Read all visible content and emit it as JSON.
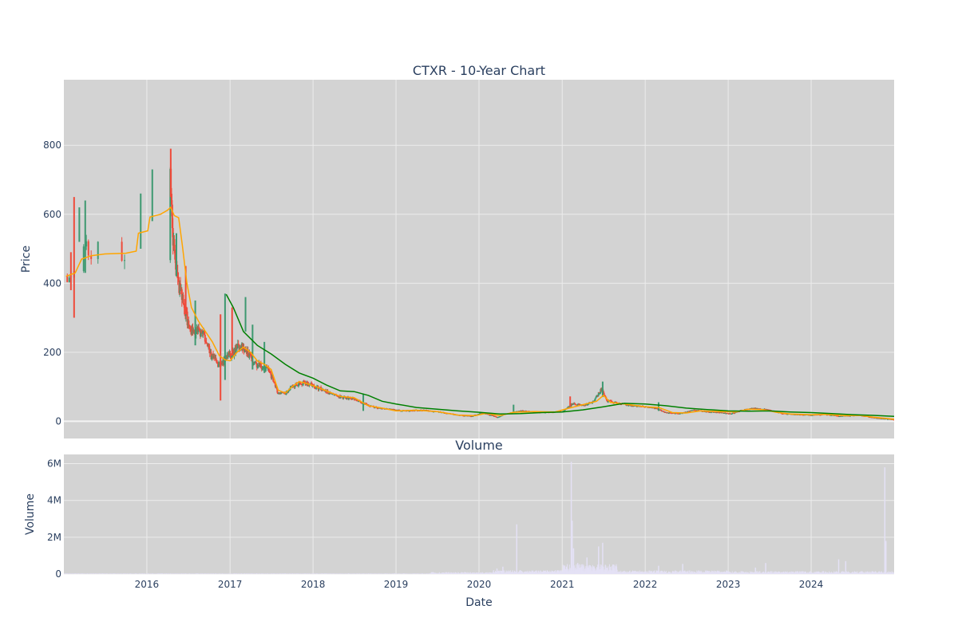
{
  "chart_data": [
    {
      "type": "candlestick",
      "title": "CTXR - 10-Year Chart",
      "xlabel": "",
      "ylabel": "Price",
      "xlim": [
        "2015-01-01",
        "2024-12-31"
      ],
      "ylim": [
        -50,
        990
      ],
      "yticks": [
        0,
        200,
        400,
        600,
        800
      ],
      "grid": true,
      "up_color": "#3d9970",
      "down_color": "#ef4a3a",
      "price_anchors": [
        [
          "2015-01-01",
          420
        ],
        [
          "2015-01-20",
          400
        ],
        [
          "2015-02-05",
          440
        ],
        [
          "2015-02-20",
          460
        ],
        [
          "2015-03-20",
          520
        ],
        [
          "2015-04-20",
          500
        ],
        [
          "2015-10-10",
          470
        ],
        [
          "2015-11-25",
          560
        ],
        [
          "2016-01-05",
          600
        ],
        [
          "2016-04-10",
          810
        ],
        [
          "2016-04-25",
          520
        ],
        [
          "2016-05-15",
          410
        ],
        [
          "2016-06-10",
          340
        ],
        [
          "2016-07-10",
          260
        ],
        [
          "2016-08-15",
          260
        ],
        [
          "2016-09-10",
          250
        ],
        [
          "2016-10-10",
          190
        ],
        [
          "2016-11-15",
          160
        ],
        [
          "2016-12-20",
          190
        ],
        [
          "2017-01-15",
          200
        ],
        [
          "2017-02-15",
          220
        ],
        [
          "2017-03-15",
          200
        ],
        [
          "2017-04-15",
          170
        ],
        [
          "2017-05-15",
          160
        ],
        [
          "2017-06-15",
          150
        ],
        [
          "2017-07-15",
          110
        ],
        [
          "2017-08-01",
          80
        ],
        [
          "2017-09-01",
          80
        ],
        [
          "2017-10-01",
          100
        ],
        [
          "2017-11-01",
          110
        ],
        [
          "2017-12-01",
          110
        ],
        [
          "2018-01-15",
          100
        ],
        [
          "2018-03-01",
          85
        ],
        [
          "2018-05-01",
          70
        ],
        [
          "2018-07-01",
          65
        ],
        [
          "2018-08-15",
          50
        ],
        [
          "2018-10-01",
          40
        ],
        [
          "2018-12-01",
          35
        ],
        [
          "2019-02-01",
          30
        ],
        [
          "2019-05-01",
          32
        ],
        [
          "2019-08-01",
          25
        ],
        [
          "2019-10-01",
          18
        ],
        [
          "2019-12-01",
          15
        ],
        [
          "2020-01-15",
          25
        ],
        [
          "2020-03-20",
          12
        ],
        [
          "2020-05-01",
          22
        ],
        [
          "2020-07-01",
          30
        ],
        [
          "2020-09-01",
          27
        ],
        [
          "2020-11-01",
          26
        ],
        [
          "2021-01-01",
          28
        ],
        [
          "2021-02-20",
          52
        ],
        [
          "2021-04-01",
          45
        ],
        [
          "2021-05-15",
          55
        ],
        [
          "2021-06-25",
          95
        ],
        [
          "2021-07-15",
          60
        ],
        [
          "2021-09-01",
          52
        ],
        [
          "2021-11-01",
          45
        ],
        [
          "2022-01-01",
          42
        ],
        [
          "2022-02-15",
          38
        ],
        [
          "2022-04-01",
          25
        ],
        [
          "2022-06-01",
          22
        ],
        [
          "2022-08-01",
          32
        ],
        [
          "2022-10-01",
          28
        ],
        [
          "2022-12-01",
          25
        ],
        [
          "2023-01-15",
          22
        ],
        [
          "2023-03-01",
          32
        ],
        [
          "2023-05-01",
          38
        ],
        [
          "2023-07-01",
          32
        ],
        [
          "2023-09-01",
          22
        ],
        [
          "2023-11-01",
          20
        ],
        [
          "2024-01-01",
          18
        ],
        [
          "2024-03-01",
          20
        ],
        [
          "2024-05-01",
          15
        ],
        [
          "2024-08-01",
          18
        ],
        [
          "2024-10-01",
          10
        ],
        [
          "2024-12-31",
          5
        ]
      ],
      "spikes": [
        [
          "2015-02-15",
          650,
          300
        ],
        [
          "2015-03-10",
          620,
          520
        ],
        [
          "2015-04-05",
          640,
          430
        ],
        [
          "2015-02-01",
          490,
          380
        ],
        [
          "2016-01-25",
          730,
          580
        ],
        [
          "2015-12-05",
          660,
          500
        ],
        [
          "2016-04-15",
          790,
          650
        ],
        [
          "2016-05-10",
          545,
          420
        ],
        [
          "2016-12-10",
          370,
          120
        ],
        [
          "2017-01-10",
          330,
          190
        ],
        [
          "2017-03-10",
          360,
          260
        ],
        [
          "2017-04-10",
          280,
          150
        ],
        [
          "2016-06-20",
          450,
          310
        ],
        [
          "2016-08-01",
          350,
          220
        ],
        [
          "2017-06-01",
          230,
          140
        ],
        [
          "2016-11-20",
          310,
          60
        ],
        [
          "2018-08-10",
          80,
          30
        ],
        [
          "2020-06-01",
          48,
          28
        ],
        [
          "2021-02-05",
          72,
          42
        ],
        [
          "2021-06-28",
          115,
          70
        ],
        [
          "2022-03-01",
          55,
          30
        ]
      ],
      "series": [
        {
          "name": "",
          "color": "#ffa500",
          "points": [
            [
              "2015-01-10",
              420
            ],
            [
              "2015-02-20",
              430
            ],
            [
              "2015-03-20",
              470
            ],
            [
              "2015-05-01",
              480
            ],
            [
              "2015-07-01",
              485
            ],
            [
              "2015-10-01",
              487
            ],
            [
              "2015-11-15",
              493
            ],
            [
              "2015-11-25",
              545
            ],
            [
              "2016-01-05",
              552
            ],
            [
              "2016-01-15",
              592
            ],
            [
              "2016-03-01",
              600
            ],
            [
              "2016-04-01",
              612
            ],
            [
              "2016-04-15",
              620
            ],
            [
              "2016-05-01",
              596
            ],
            [
              "2016-05-20",
              590
            ],
            [
              "2016-06-05",
              510
            ],
            [
              "2016-06-25",
              400
            ],
            [
              "2016-07-15",
              330
            ],
            [
              "2016-08-15",
              290
            ],
            [
              "2016-09-15",
              260
            ],
            [
              "2016-10-15",
              230
            ],
            [
              "2016-11-15",
              190
            ],
            [
              "2016-12-10",
              178
            ],
            [
              "2017-01-01",
              175
            ],
            [
              "2017-02-01",
              200
            ],
            [
              "2017-03-01",
              215
            ],
            [
              "2017-04-01",
              200
            ],
            [
              "2017-05-01",
              175
            ],
            [
              "2017-06-01",
              165
            ],
            [
              "2017-07-01",
              150
            ],
            [
              "2017-08-01",
              90
            ],
            [
              "2017-09-01",
              82
            ],
            [
              "2017-10-01",
              100
            ],
            [
              "2017-11-01",
              115
            ],
            [
              "2017-12-01",
              110
            ],
            [
              "2018-01-15",
              100
            ],
            [
              "2018-03-01",
              88
            ],
            [
              "2018-05-01",
              72
            ],
            [
              "2018-07-01",
              68
            ],
            [
              "2018-09-01",
              45
            ],
            [
              "2018-11-01",
              38
            ],
            [
              "2019-01-01",
              30
            ],
            [
              "2019-04-01",
              32
            ],
            [
              "2019-07-01",
              28
            ],
            [
              "2019-10-01",
              18
            ],
            [
              "2019-12-15",
              16
            ],
            [
              "2020-02-01",
              23
            ],
            [
              "2020-04-01",
              16
            ],
            [
              "2020-06-01",
              26
            ],
            [
              "2020-09-01",
              28
            ],
            [
              "2020-12-01",
              27
            ],
            [
              "2021-02-01",
              38
            ],
            [
              "2021-04-01",
              48
            ],
            [
              "2021-06-01",
              58
            ],
            [
              "2021-07-01",
              75
            ],
            [
              "2021-08-01",
              55
            ],
            [
              "2021-10-01",
              50
            ],
            [
              "2022-01-01",
              42
            ],
            [
              "2022-03-01",
              40
            ],
            [
              "2022-05-01",
              25
            ],
            [
              "2022-07-01",
              24
            ],
            [
              "2022-09-01",
              30
            ],
            [
              "2022-12-01",
              28
            ],
            [
              "2023-02-01",
              27
            ],
            [
              "2023-04-01",
              35
            ],
            [
              "2023-06-01",
              34
            ],
            [
              "2023-08-01",
              26
            ],
            [
              "2023-10-01",
              21
            ],
            [
              "2024-01-01",
              19
            ],
            [
              "2024-03-01",
              20
            ],
            [
              "2024-06-01",
              16
            ],
            [
              "2024-08-01",
              17
            ],
            [
              "2024-10-01",
              12
            ],
            [
              "2024-12-31",
              6
            ]
          ]
        },
        {
          "name": "",
          "color": "#008000",
          "points": [
            [
              "2016-12-15",
              368
            ],
            [
              "2017-01-15",
              330
            ],
            [
              "2017-03-01",
              260
            ],
            [
              "2017-05-01",
              220
            ],
            [
              "2017-07-01",
              195
            ],
            [
              "2017-09-01",
              165
            ],
            [
              "2017-11-01",
              140
            ],
            [
              "2018-01-01",
              125
            ],
            [
              "2018-03-01",
              105
            ],
            [
              "2018-05-01",
              88
            ],
            [
              "2018-07-01",
              86
            ],
            [
              "2018-09-01",
              75
            ],
            [
              "2018-11-01",
              58
            ],
            [
              "2019-01-01",
              50
            ],
            [
              "2019-04-01",
              40
            ],
            [
              "2019-07-01",
              35
            ],
            [
              "2019-10-01",
              30
            ],
            [
              "2020-01-01",
              26
            ],
            [
              "2020-04-01",
              21
            ],
            [
              "2020-07-01",
              22
            ],
            [
              "2020-10-01",
              25
            ],
            [
              "2021-01-01",
              27
            ],
            [
              "2021-04-01",
              33
            ],
            [
              "2021-07-01",
              42
            ],
            [
              "2021-10-01",
              52
            ],
            [
              "2022-01-01",
              50
            ],
            [
              "2022-04-01",
              45
            ],
            [
              "2022-07-01",
              38
            ],
            [
              "2022-10-01",
              34
            ],
            [
              "2023-01-01",
              30
            ],
            [
              "2023-04-01",
              29
            ],
            [
              "2023-07-01",
              30
            ],
            [
              "2023-10-01",
              27
            ],
            [
              "2024-01-01",
              25
            ],
            [
              "2024-04-01",
              22
            ],
            [
              "2024-07-01",
              19
            ],
            [
              "2024-10-01",
              17
            ],
            [
              "2024-12-31",
              14
            ]
          ]
        }
      ]
    },
    {
      "type": "bar",
      "title": "Volume",
      "xlabel": "Date",
      "ylabel": "Volume",
      "xlim": [
        "2015-01-01",
        "2024-12-31"
      ],
      "ylim": [
        0,
        6500000
      ],
      "yticks": [
        0,
        2000000,
        4000000,
        6000000
      ],
      "ytick_labels": [
        "0",
        "2M",
        "4M",
        "6M"
      ],
      "xticks": [
        "2016-01-01",
        "2017-01-01",
        "2018-01-01",
        "2019-01-01",
        "2020-01-01",
        "2021-01-01",
        "2022-01-01",
        "2023-01-01",
        "2024-01-01"
      ],
      "xtick_labels": [
        "2016",
        "2017",
        "2018",
        "2019",
        "2020",
        "2021",
        "2022",
        "2023",
        "2024"
      ],
      "bar_color": "#e4e1f5",
      "spikes": [
        [
          "2020-06-15",
          2700000
        ],
        [
          "2021-02-10",
          6100000
        ],
        [
          "2021-02-14",
          2900000
        ],
        [
          "2021-02-20",
          1400000
        ],
        [
          "2021-03-10",
          600000
        ],
        [
          "2021-04-20",
          900000
        ],
        [
          "2021-06-10",
          1500000
        ],
        [
          "2021-06-28",
          1700000
        ],
        [
          "2021-07-10",
          500000
        ],
        [
          "2022-03-01",
          450000
        ],
        [
          "2022-06-15",
          550000
        ],
        [
          "2023-05-01",
          350000
        ],
        [
          "2023-06-15",
          600000
        ],
        [
          "2024-05-01",
          800000
        ],
        [
          "2024-06-01",
          700000
        ],
        [
          "2024-11-20",
          5800000
        ],
        [
          "2024-11-25",
          1800000
        ],
        [
          "2020-03-20",
          300000
        ],
        [
          "2020-04-15",
          400000
        ]
      ]
    }
  ],
  "colors": {
    "plot_bg": "#d3d3d3",
    "grid": "#ececec",
    "text": "#2a3f5f"
  }
}
